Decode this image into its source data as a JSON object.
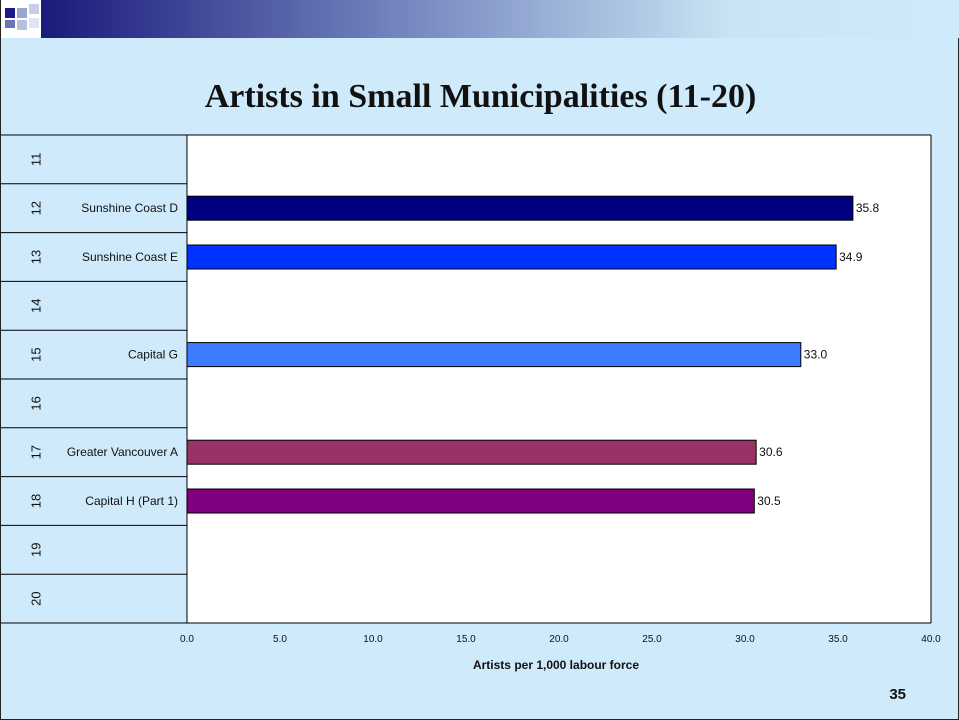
{
  "slide": {
    "title": "Artists in Small Municipalities (11-20)",
    "page_number": "35"
  },
  "chart_data": {
    "type": "bar",
    "orientation": "horizontal",
    "title": "Artists in Small Municipalities (11-20)",
    "xlabel": "Artists per 1,000 labour force",
    "ylabel": "",
    "xlim": [
      0,
      40
    ],
    "xticks": [
      "0.0",
      "5.0",
      "10.0",
      "15.0",
      "20.0",
      "25.0",
      "30.0",
      "35.0",
      "40.0"
    ],
    "grid": false,
    "legend": "none",
    "ranks": [
      "11",
      "12",
      "13",
      "14",
      "15",
      "16",
      "17",
      "18",
      "19",
      "20"
    ],
    "categories": [
      "",
      "Sunshine Coast D",
      "Sunshine Coast E",
      "",
      "Capital G",
      "",
      "Greater Vancouver A",
      "Capital H (Part 1)",
      "",
      ""
    ],
    "values": [
      null,
      35.8,
      34.9,
      null,
      33.0,
      null,
      30.6,
      30.5,
      null,
      null
    ],
    "value_labels": [
      "",
      "35.8",
      "34.9",
      "",
      "33.0",
      "",
      "30.6",
      "30.5",
      "",
      ""
    ],
    "colors": [
      "",
      "#000080",
      "#0033ff",
      "",
      "#3d7cff",
      "",
      "#993366",
      "#800080",
      "",
      ""
    ]
  }
}
